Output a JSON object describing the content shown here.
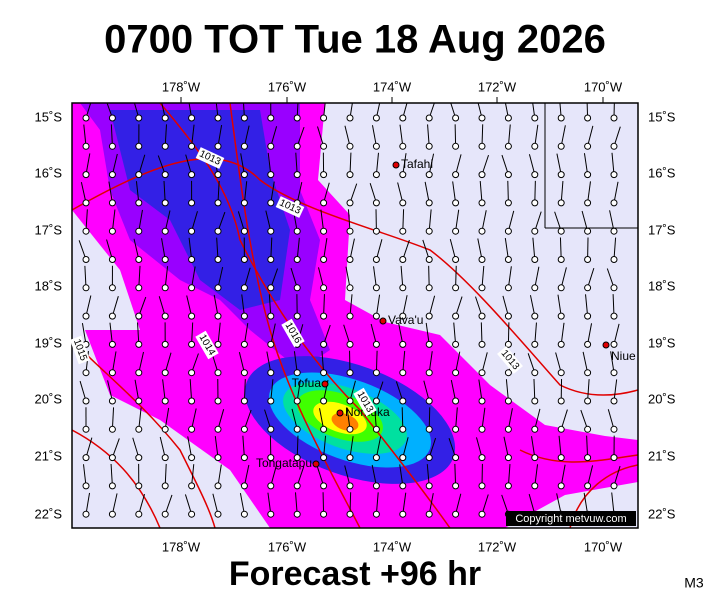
{
  "header": {
    "title": "0700 TOT Tue 18 Aug 2026"
  },
  "footer": {
    "forecast": "Forecast +96 hr",
    "model": "M3",
    "copyright": "Copyright metvuw.com"
  },
  "map": {
    "lon_labels": [
      "178˚W",
      "176˚W",
      "174˚W",
      "172˚W",
      "170˚W"
    ],
    "lat_labels": [
      "15˚S",
      "16˚S",
      "17˚S",
      "18˚S",
      "19˚S",
      "20˚S",
      "21˚S",
      "22˚S"
    ],
    "places": [
      "Tafahi",
      "Vava'u",
      "Niue",
      "Tofua",
      "Nomuka",
      "Tongatapu"
    ],
    "isobar_labels": [
      "1013",
      "1013",
      "1013",
      "1013",
      "1014",
      "1015",
      "1016"
    ]
  }
}
